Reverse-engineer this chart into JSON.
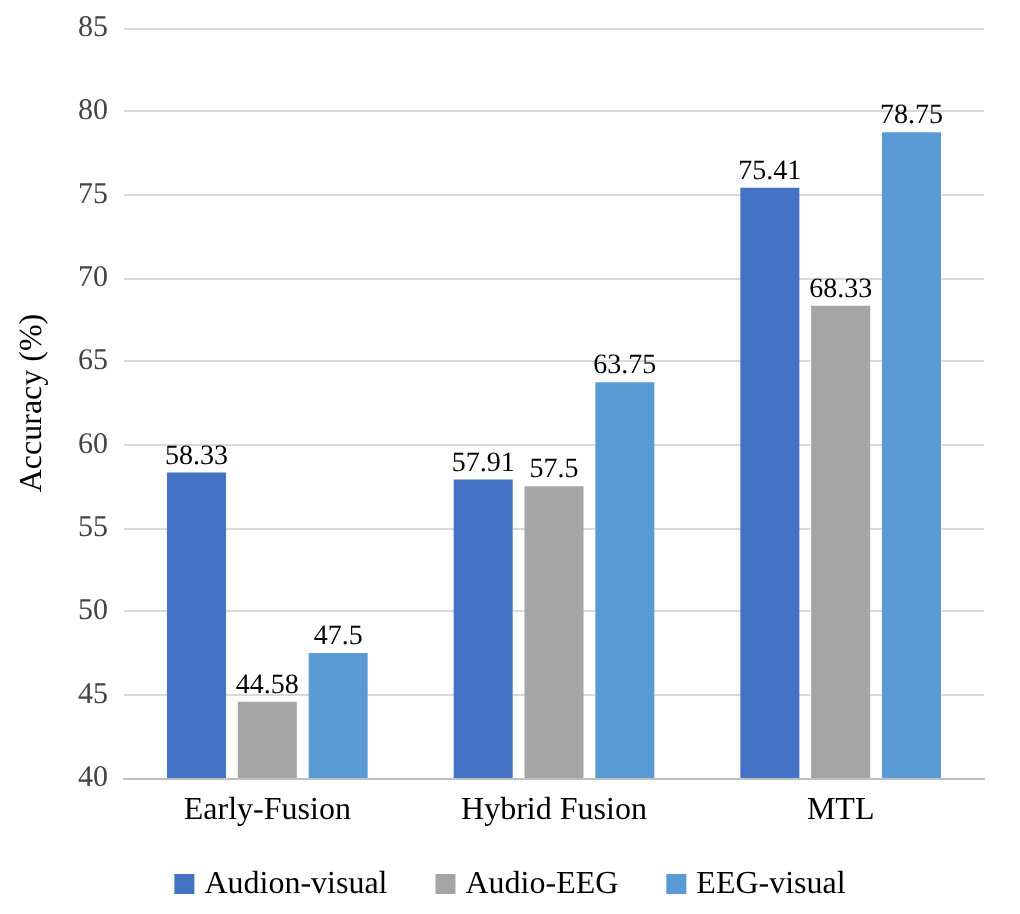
{
  "chart_data": {
    "type": "bar",
    "ylabel": "Accuracy (%)",
    "categories": [
      "Early-Fusion",
      "Hybrid Fusion",
      "MTL"
    ],
    "series": [
      {
        "name": "Audion-visual",
        "color": "#4472c4",
        "values": [
          58.33,
          57.91,
          75.41
        ]
      },
      {
        "name": "Audio-EEG",
        "color": "#a5a5a5",
        "values": [
          44.58,
          57.5,
          68.33
        ]
      },
      {
        "name": "EEG-visual",
        "color": "#5b9bd5",
        "values": [
          47.5,
          63.75,
          78.75
        ]
      }
    ],
    "ylim": [
      40,
      85
    ],
    "yticks": [
      40,
      45,
      50,
      55,
      60,
      65,
      70,
      75,
      80,
      85
    ],
    "grid": "y",
    "legend": "bottom",
    "data_labels": true
  }
}
